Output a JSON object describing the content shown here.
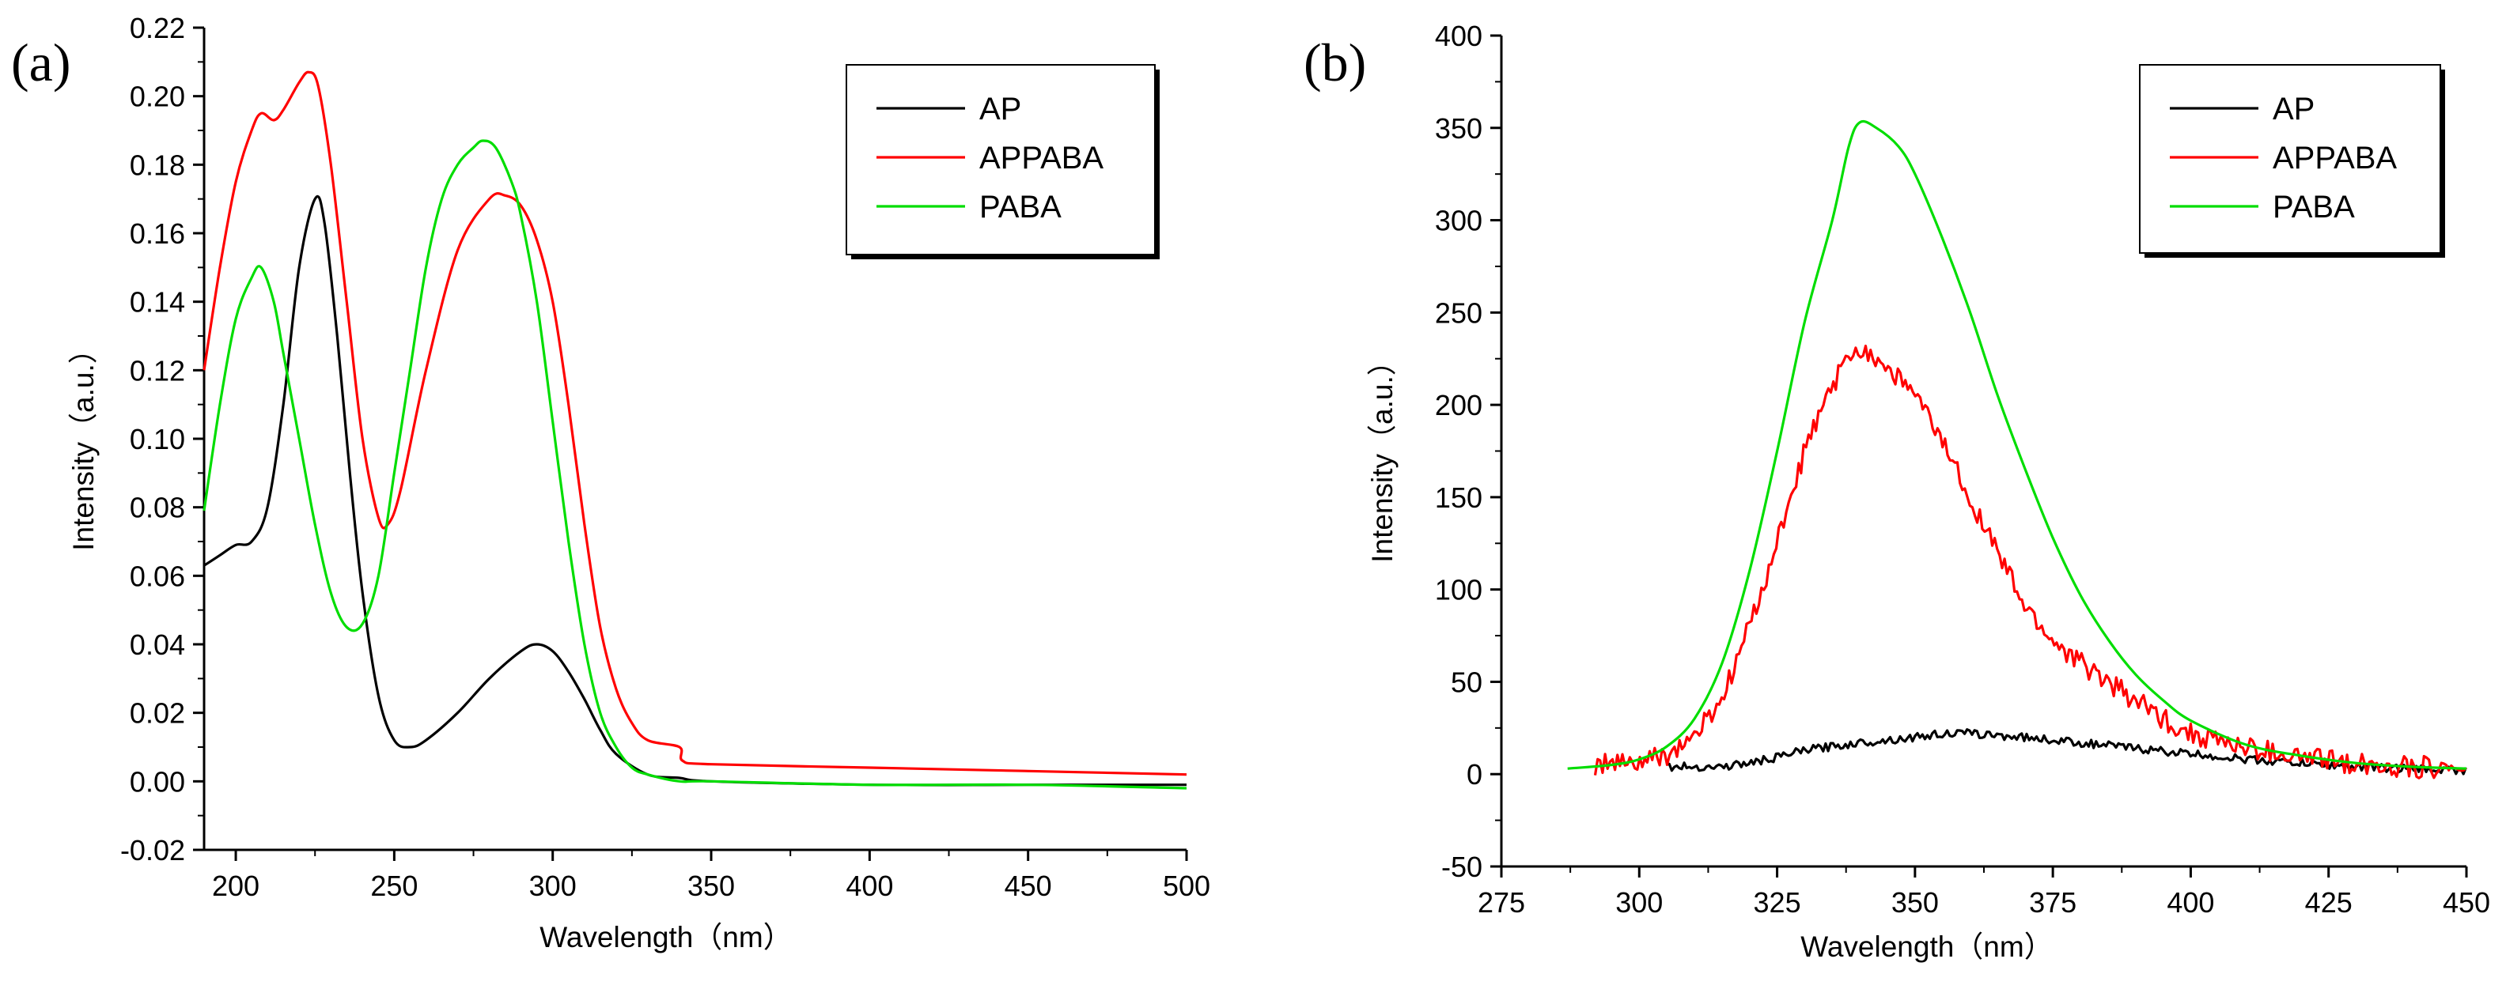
{
  "figure": {
    "chart_a": {
      "panel_label": "(a)",
      "xlabel": "Wavelength（nm）",
      "ylabel": "Intensity（a.u.）",
      "ylabel_parts": [
        "Intensity",
        "（",
        "a.u.",
        "）"
      ]
    },
    "chart_b": {
      "panel_label": "(b)",
      "xlabel": "Wavelength（nm）",
      "ylabel": "Intensity（a.u.）",
      "ylabel_parts": [
        "Intensity",
        "（",
        "a.u.",
        "）"
      ]
    }
  },
  "colors": {
    "AP": "#000000",
    "APPABA": "#ff0000",
    "PABA": "#00dd00",
    "axis": "#000000"
  },
  "chart_data": [
    {
      "id": "a",
      "type": "line",
      "title": "",
      "panel_label": "(a)",
      "xlabel": "Wavelength（nm）",
      "ylabel": "Intensity（a.u.）",
      "xlim": [
        190,
        500
      ],
      "ylim": [
        -0.02,
        0.22
      ],
      "xticks": [
        200,
        250,
        300,
        350,
        400,
        450,
        500
      ],
      "xtick_labels": [
        "200",
        "250",
        "300",
        "350",
        "400",
        "450",
        "500"
      ],
      "yticks": [
        -0.02,
        0.0,
        0.02,
        0.04,
        0.06,
        0.08,
        0.1,
        0.12,
        0.14,
        0.16,
        0.18,
        0.2,
        0.22
      ],
      "ytick_labels": [
        "-0.02",
        "0.00",
        "0.02",
        "0.04",
        "0.06",
        "0.08",
        "0.10",
        "0.12",
        "0.14",
        "0.16",
        "0.18",
        "0.20",
        "0.22"
      ],
      "legend": {
        "position": "top-right",
        "entries": [
          "AP",
          "APPABA",
          "PABA"
        ]
      },
      "series": [
        {
          "name": "AP",
          "color": "#000000",
          "noise": 0,
          "x": [
            190,
            195,
            200,
            205,
            210,
            215,
            220,
            225,
            228,
            232,
            236,
            240,
            245,
            250,
            255,
            260,
            270,
            280,
            290,
            295,
            300,
            305,
            310,
            315,
            320,
            330,
            340,
            350,
            400,
            450,
            500
          ],
          "y": [
            0.063,
            0.066,
            0.069,
            0.07,
            0.08,
            0.11,
            0.15,
            0.17,
            0.163,
            0.13,
            0.09,
            0.055,
            0.025,
            0.012,
            0.01,
            0.012,
            0.02,
            0.03,
            0.038,
            0.04,
            0.038,
            0.032,
            0.024,
            0.015,
            0.008,
            0.002,
            0.001,
            0.0,
            -0.001,
            -0.001,
            -0.001
          ]
        },
        {
          "name": "APPABA",
          "color": "#ff0000",
          "noise": 0,
          "x": [
            190,
            195,
            200,
            205,
            208,
            212,
            215,
            220,
            223,
            226,
            230,
            235,
            240,
            245,
            248,
            252,
            260,
            270,
            280,
            285,
            290,
            295,
            300,
            305,
            310,
            315,
            320,
            325,
            330,
            340,
            341,
            350,
            400,
            450,
            500
          ],
          "y": [
            0.12,
            0.15,
            0.175,
            0.19,
            0.195,
            0.193,
            0.196,
            0.204,
            0.207,
            0.203,
            0.18,
            0.14,
            0.1,
            0.077,
            0.075,
            0.085,
            0.12,
            0.155,
            0.17,
            0.171,
            0.168,
            0.158,
            0.14,
            0.11,
            0.075,
            0.045,
            0.027,
            0.017,
            0.012,
            0.01,
            0.006,
            0.005,
            0.004,
            0.003,
            0.002
          ]
        },
        {
          "name": "PABA",
          "color": "#00dd00",
          "noise": 0,
          "x": [
            190,
            195,
            200,
            205,
            208,
            212,
            215,
            220,
            225,
            230,
            235,
            240,
            245,
            250,
            255,
            260,
            265,
            270,
            275,
            278,
            282,
            287,
            290,
            295,
            300,
            305,
            310,
            315,
            320,
            325,
            330,
            340,
            350,
            400,
            450,
            500
          ],
          "y": [
            0.079,
            0.11,
            0.135,
            0.147,
            0.15,
            0.14,
            0.125,
            0.1,
            0.075,
            0.055,
            0.045,
            0.046,
            0.06,
            0.09,
            0.12,
            0.15,
            0.17,
            0.18,
            0.185,
            0.187,
            0.185,
            0.175,
            0.165,
            0.14,
            0.105,
            0.07,
            0.04,
            0.02,
            0.01,
            0.004,
            0.002,
            0.0,
            0.0,
            -0.001,
            -0.001,
            -0.002
          ]
        }
      ]
    },
    {
      "id": "b",
      "type": "line",
      "title": "",
      "panel_label": "(b)",
      "xlabel": "Wavelength（nm）",
      "ylabel": "Intensity（a.u.）",
      "xlim": [
        275,
        450
      ],
      "ylim": [
        -50,
        400
      ],
      "xticks": [
        275,
        300,
        325,
        350,
        375,
        400,
        425,
        450
      ],
      "xtick_labels": [
        "275",
        "300",
        "325",
        "350",
        "375",
        "400",
        "425",
        "450"
      ],
      "yticks": [
        -50,
        0,
        50,
        100,
        150,
        200,
        250,
        300,
        350,
        400
      ],
      "ytick_labels": [
        "-50",
        "0",
        "50",
        "100",
        "150",
        "200",
        "250",
        "300",
        "350",
        "400"
      ],
      "legend": {
        "position": "top-right",
        "entries": [
          "AP",
          "APPABA",
          "PABA"
        ]
      },
      "series": [
        {
          "name": "AP",
          "color": "#000000",
          "noise": 2.2,
          "x": [
            305,
            315,
            320,
            325,
            330,
            340,
            350,
            355,
            360,
            370,
            380,
            390,
            400,
            410,
            420,
            430,
            440,
            450
          ],
          "y": [
            4,
            4,
            6,
            9,
            13,
            17,
            20,
            22,
            22,
            20,
            17,
            14,
            11,
            8,
            6,
            4,
            3,
            2
          ]
        },
        {
          "name": "APPABA",
          "color": "#ff0000",
          "noise": 6,
          "x": [
            292,
            300,
            305,
            310,
            315,
            320,
            325,
            330,
            335,
            338,
            340,
            343,
            347,
            350,
            355,
            360,
            365,
            370,
            375,
            380,
            385,
            390,
            395,
            400,
            410,
            420,
            430,
            440,
            450
          ],
          "y": [
            5,
            6,
            10,
            20,
            40,
            80,
            125,
            175,
            210,
            225,
            232,
            225,
            215,
            205,
            180,
            150,
            120,
            90,
            72,
            60,
            50,
            40,
            30,
            22,
            14,
            9,
            6,
            4,
            3
          ]
        },
        {
          "name": "PABA",
          "color": "#00dd00",
          "noise": 0,
          "x": [
            287,
            295,
            300,
            305,
            310,
            315,
            320,
            325,
            330,
            335,
            338,
            340,
            343,
            347,
            350,
            355,
            360,
            365,
            370,
            375,
            380,
            385,
            390,
            395,
            400,
            410,
            420,
            430,
            440,
            450
          ],
          "y": [
            3,
            5,
            8,
            15,
            30,
            60,
            110,
            175,
            245,
            300,
            340,
            353,
            350,
            340,
            325,
            290,
            250,
            205,
            165,
            128,
            97,
            73,
            54,
            40,
            29,
            16,
            10,
            6,
            4,
            3
          ]
        }
      ]
    }
  ]
}
